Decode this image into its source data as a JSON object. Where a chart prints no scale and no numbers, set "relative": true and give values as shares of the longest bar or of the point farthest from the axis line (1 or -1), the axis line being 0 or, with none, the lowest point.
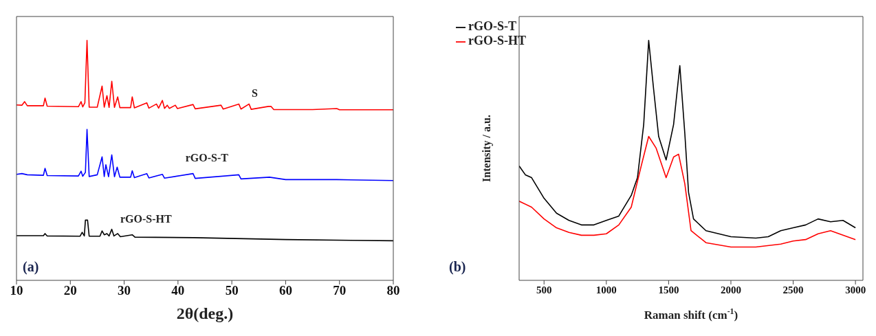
{
  "chart_data": [
    {
      "type": "line",
      "relative": true,
      "xlabel": "2θ(deg.)",
      "xlim": [
        10,
        80
      ],
      "xticks": [
        10,
        20,
        30,
        40,
        50,
        60,
        70,
        80
      ],
      "legend": false,
      "annotations": [
        "(a)"
      ],
      "series": [
        {
          "name": "S",
          "color": "#ff0000",
          "x": [
            10,
            11,
            11.5,
            12,
            15,
            15.3,
            15.7,
            21.5,
            22,
            22.3,
            22.7,
            23.1,
            23.5,
            25,
            25.9,
            26.3,
            26.8,
            27.2,
            27.7,
            28.2,
            28.8,
            29.2,
            31.2,
            31.5,
            31.9,
            34.2,
            34.6,
            36,
            36.4,
            37.1,
            37.5,
            38,
            38.4,
            39.5,
            39.9,
            42.8,
            43.2,
            48,
            48.4,
            51.3,
            51.7,
            53.2,
            53.6,
            56.8,
            57.3,
            57.8,
            65,
            69.5,
            70,
            80
          ],
          "values": [
            0.731,
            0.73,
            0.745,
            0.728,
            0.728,
            0.76,
            0.726,
            0.724,
            0.745,
            0.723,
            0.74,
            1.0,
            0.722,
            0.722,
            0.81,
            0.722,
            0.77,
            0.721,
            0.83,
            0.721,
            0.765,
            0.72,
            0.72,
            0.765,
            0.719,
            0.74,
            0.718,
            0.735,
            0.718,
            0.75,
            0.717,
            0.73,
            0.717,
            0.73,
            0.716,
            0.733,
            0.715,
            0.73,
            0.714,
            0.735,
            0.714,
            0.735,
            0.713,
            0.725,
            0.725,
            0.712,
            0.712,
            0.716,
            0.711,
            0.711
          ]
        },
        {
          "name": "rGO-S-T",
          "color": "#0000ff",
          "x": [
            10,
            11,
            12,
            15,
            15.3,
            15.7,
            21.5,
            22,
            22.3,
            22.8,
            23.1,
            23.5,
            25,
            25.9,
            26.3,
            26.6,
            27.1,
            27.7,
            28.2,
            28.7,
            29.2,
            31.2,
            31.5,
            31.9,
            34.2,
            34.6,
            37.1,
            37.5,
            42.8,
            43.2,
            51.3,
            51.7,
            57,
            60,
            69.5,
            80
          ],
          "values": [
            0.442,
            0.445,
            0.44,
            0.438,
            0.467,
            0.437,
            0.435,
            0.455,
            0.434,
            0.45,
            0.629,
            0.433,
            0.44,
            0.515,
            0.433,
            0.482,
            0.432,
            0.523,
            0.432,
            0.472,
            0.43,
            0.43,
            0.457,
            0.428,
            0.445,
            0.427,
            0.442,
            0.426,
            0.445,
            0.425,
            0.44,
            0.423,
            0.43,
            0.42,
            0.42,
            0.416
          ]
        },
        {
          "name": "rGO-S-HT",
          "color": "#000000",
          "x": [
            10,
            15,
            15.3,
            15.7,
            21.8,
            22.2,
            22.6,
            22.8,
            23.2,
            23.5,
            25.5,
            25.9,
            26.3,
            26.8,
            27.2,
            27.7,
            28.1,
            28.8,
            29.3,
            31.5,
            32,
            43,
            60,
            80
          ],
          "values": [
            0.186,
            0.186,
            0.195,
            0.185,
            0.184,
            0.2,
            0.185,
            0.251,
            0.251,
            0.184,
            0.184,
            0.206,
            0.19,
            0.195,
            0.185,
            0.213,
            0.185,
            0.195,
            0.182,
            0.19,
            0.18,
            0.178,
            0.17,
            0.165
          ]
        }
      ]
    },
    {
      "type": "line",
      "relative": true,
      "xlabel": "Raman shift (cm$^{-1}$)",
      "ylabel": "Intensity / a.u.",
      "xlim": [
        300,
        3060
      ],
      "xticks": [
        500,
        1000,
        1500,
        2000,
        2500,
        3000
      ],
      "legend": "top left",
      "annotations": [
        "(b)"
      ],
      "series": [
        {
          "name": "rGO-S-T",
          "color": "#000000",
          "x": [
            300,
            350,
            400,
            500,
            600,
            700,
            800,
            900,
            1000,
            1100,
            1200,
            1250,
            1300,
            1340,
            1380,
            1420,
            1480,
            1540,
            1590,
            1630,
            1660,
            1700,
            1800,
            2000,
            2200,
            2300,
            2400,
            2500,
            2600,
            2700,
            2800,
            2900,
            3000
          ],
          "values": [
            0.477,
            0.44,
            0.428,
            0.342,
            0.28,
            0.25,
            0.231,
            0.231,
            0.25,
            0.268,
            0.354,
            0.428,
            0.65,
            1.0,
            0.795,
            0.6,
            0.502,
            0.65,
            0.895,
            0.613,
            0.367,
            0.256,
            0.207,
            0.182,
            0.176,
            0.182,
            0.207,
            0.219,
            0.231,
            0.256,
            0.244,
            0.25,
            0.219
          ]
        },
        {
          "name": "rGO-S-HT",
          "color": "#ff0000",
          "x": [
            300,
            400,
            500,
            600,
            700,
            800,
            900,
            1000,
            1100,
            1200,
            1280,
            1340,
            1400,
            1480,
            1540,
            1580,
            1630,
            1680,
            1800,
            2000,
            2200,
            2400,
            2500,
            2600,
            2700,
            2800,
            2900,
            3000
          ],
          "values": [
            0.33,
            0.305,
            0.256,
            0.219,
            0.2,
            0.188,
            0.188,
            0.194,
            0.231,
            0.305,
            0.477,
            0.6,
            0.551,
            0.428,
            0.514,
            0.526,
            0.403,
            0.207,
            0.157,
            0.139,
            0.139,
            0.151,
            0.164,
            0.17,
            0.194,
            0.207,
            0.188,
            0.17
          ]
        }
      ]
    }
  ]
}
